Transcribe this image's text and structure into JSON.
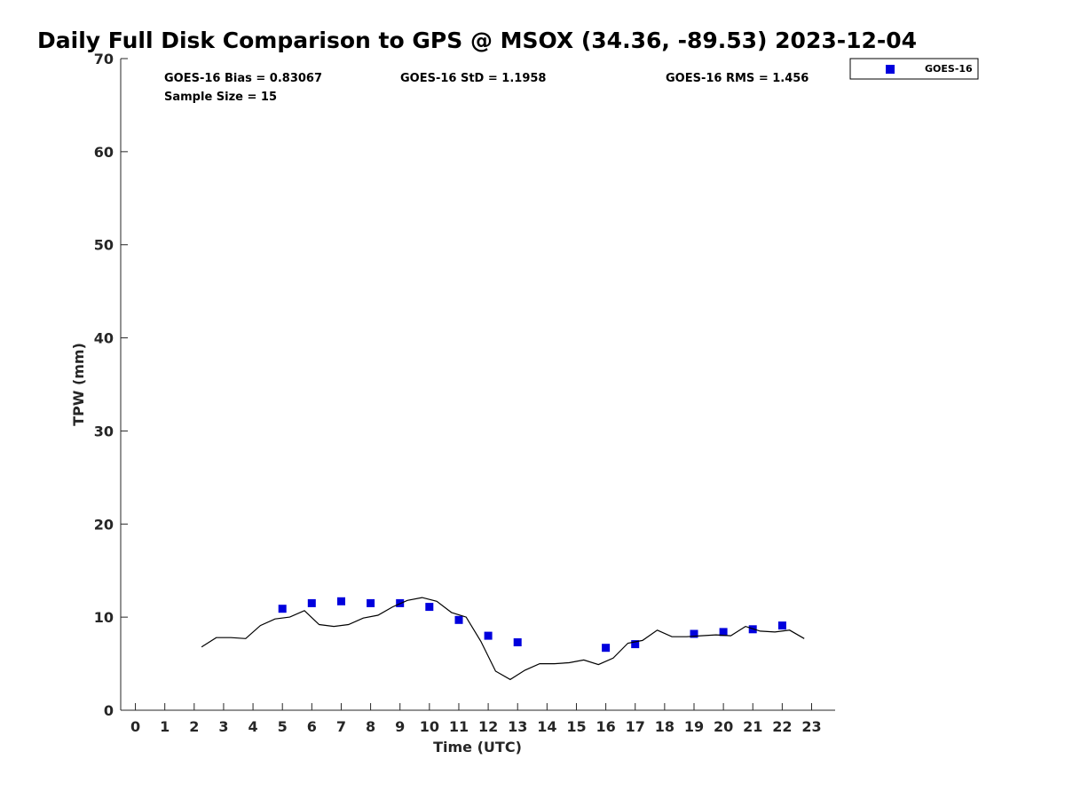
{
  "chart_data": {
    "type": "scatter",
    "title": "Daily Full Disk Comparison to GPS @ MSOX (34.36, -89.53) 2023-12-04",
    "xlabel": "Time (UTC)",
    "ylabel": "TPW (mm)",
    "xlim": [
      -0.5,
      23.8
    ],
    "ylim": [
      0,
      70
    ],
    "xticks": [
      0,
      1,
      2,
      3,
      4,
      5,
      6,
      7,
      8,
      9,
      10,
      11,
      12,
      13,
      14,
      15,
      16,
      17,
      18,
      19,
      20,
      21,
      22,
      23
    ],
    "yticks": [
      0,
      10,
      20,
      30,
      40,
      50,
      60,
      70
    ],
    "grid": false,
    "legend_position": "top-right",
    "stats": {
      "bias": "GOES-16 Bias = 0.83067",
      "std": "GOES-16 StD = 1.1958",
      "rms": "GOES-16 RMS = 1.456",
      "sample": "Sample Size = 15"
    },
    "series": [
      {
        "name": "GOES-16",
        "kind": "scatter",
        "color": "#0000dd",
        "x": [
          5,
          6,
          7,
          8,
          9,
          10,
          11,
          12,
          13,
          16,
          17,
          19,
          20,
          21,
          22
        ],
        "y": [
          10.9,
          11.5,
          11.7,
          11.5,
          11.5,
          11.1,
          9.7,
          8.0,
          7.3,
          6.7,
          7.1,
          8.2,
          8.4,
          8.7,
          9.1
        ]
      },
      {
        "kind": "line",
        "color": "#000000",
        "x": [
          2.25,
          2.75,
          3.25,
          3.75,
          4.25,
          4.75,
          5.25,
          5.75,
          6.25,
          6.75,
          7.25,
          7.75,
          8.25,
          8.75,
          9.25,
          9.75,
          10.25,
          10.75,
          11.25,
          11.75,
          12.25,
          12.75,
          13.25,
          13.75,
          14.25,
          14.75,
          15.25,
          15.75,
          16.25,
          16.75,
          17.25,
          17.75,
          18.25,
          18.75,
          19.25,
          19.75,
          20.25,
          20.75,
          21.25,
          21.75,
          22.25,
          22.75
        ],
        "y": [
          6.8,
          7.8,
          7.8,
          7.7,
          9.1,
          9.8,
          10.0,
          10.7,
          9.2,
          9.0,
          9.2,
          9.9,
          10.2,
          11.1,
          11.8,
          12.1,
          11.7,
          10.5,
          10.0,
          7.4,
          4.2,
          3.3,
          4.3,
          5.0,
          5.0,
          5.1,
          5.4,
          4.9,
          5.6,
          7.2,
          7.5,
          8.6,
          7.9,
          7.9,
          8.0,
          8.1,
          8.0,
          9.0,
          8.5,
          8.4,
          8.6,
          7.7
        ]
      }
    ]
  }
}
